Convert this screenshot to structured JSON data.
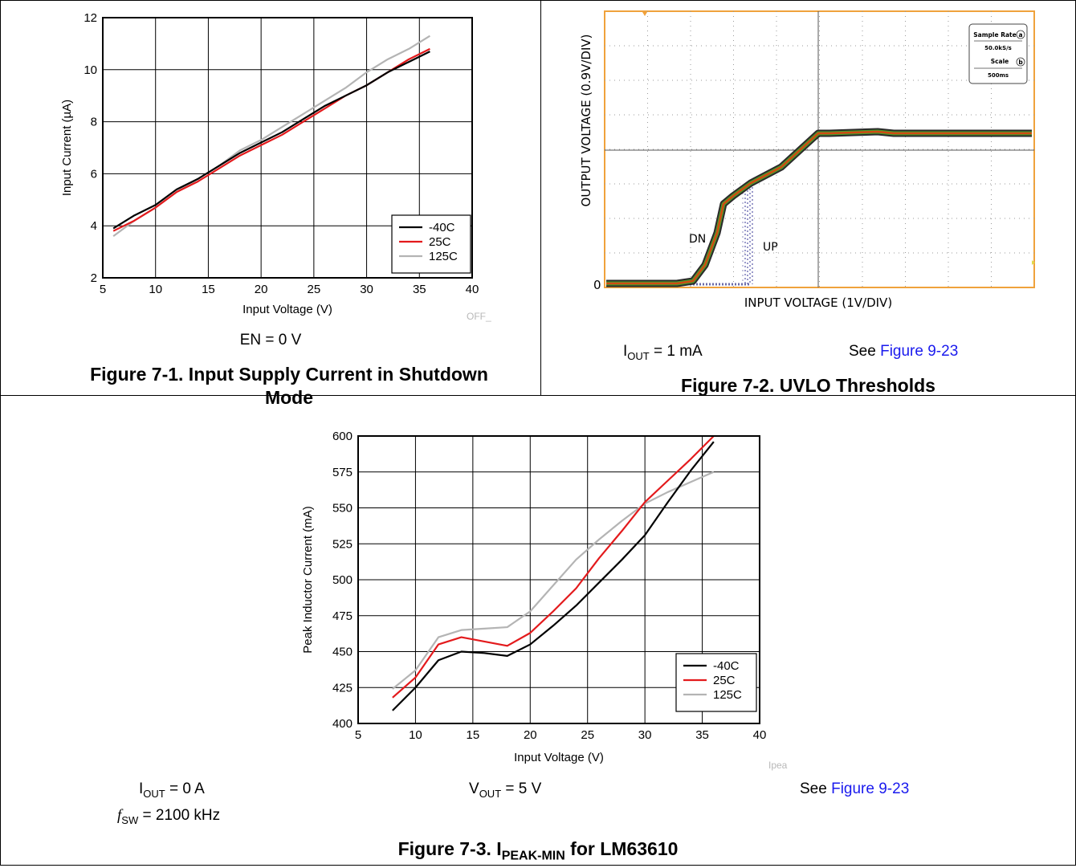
{
  "figure1": {
    "caption": "Figure 7-1. Input Supply Current in Shutdown Mode",
    "condition": "EN = 0 V",
    "watermark": "OFF_"
  },
  "figure2": {
    "caption": "Figure 7-2. UVLO Thresholds",
    "condition_prefix": "I",
    "condition_sub": "OUT",
    "condition_suffix": " = 1 mA",
    "see_prefix": "See ",
    "see_link": "Figure 9-23",
    "ylabel": "OUTPUT VOLTAGE (0.9V/DIV)",
    "xlabel": "INPUT VOLTAGE (1V/DIV)",
    "zero_label": "0",
    "dn_label": "DN",
    "up_label": "UP",
    "info_box": {
      "sample_rate_label": "Sample Rate",
      "sample_rate_value": "50.0kS/s",
      "scale_label": "Scale",
      "scale_value": "500ms",
      "badge_a": "a",
      "badge_b": "b"
    }
  },
  "figure3": {
    "caption_prefix": "Figure 7-3. I",
    "caption_sub": "PEAK-MIN",
    "caption_suffix": " for LM63610",
    "iout_prefix": "I",
    "iout_sub": "OUT",
    "iout_suffix": " = 0 A",
    "fsw_prefix": "f",
    "fsw_sub": "SW",
    "fsw_suffix": " = 2100 kHz",
    "vout_prefix": "V",
    "vout_sub": "OUT",
    "vout_suffix": " = 5 V",
    "see_prefix": "See ",
    "see_link": "Figure 9-23",
    "watermark": "Ipea"
  },
  "colors": {
    "m40": "#000000",
    "c25": "#e31a1c",
    "c125": "#b4b4b4",
    "link": "#1a1aee",
    "scope_border": "#f0a23c"
  },
  "chart_data": [
    {
      "type": "line",
      "title": "",
      "xlabel": "Input Voltage (V)",
      "ylabel": "Input Current (µA)",
      "xlim": [
        5,
        40
      ],
      "ylim": [
        2,
        12
      ],
      "xticks": [
        5,
        10,
        15,
        20,
        25,
        30,
        35,
        40
      ],
      "yticks": [
        2,
        4,
        6,
        8,
        10,
        12
      ],
      "grid": true,
      "legend_position": "bottom-right",
      "series": [
        {
          "name": "-40C",
          "color": "#000000",
          "x": [
            6,
            8,
            10,
            12,
            14,
            16,
            18,
            20,
            22,
            24,
            26,
            28,
            30,
            32,
            34,
            36
          ],
          "y": [
            3.9,
            4.4,
            4.8,
            5.4,
            5.8,
            6.3,
            6.8,
            7.2,
            7.6,
            8.1,
            8.6,
            9.0,
            9.4,
            9.9,
            10.3,
            10.7
          ]
        },
        {
          "name": "25C",
          "color": "#e31a1c",
          "x": [
            6,
            8,
            10,
            12,
            14,
            16,
            18,
            20,
            22,
            24,
            26,
            28,
            30,
            32,
            34,
            36
          ],
          "y": [
            3.8,
            4.2,
            4.7,
            5.3,
            5.7,
            6.2,
            6.7,
            7.1,
            7.5,
            8.0,
            8.5,
            9.0,
            9.4,
            9.9,
            10.4,
            10.8
          ]
        },
        {
          "name": "125C",
          "color": "#b4b4b4",
          "x": [
            6,
            8,
            10,
            12,
            14,
            16,
            18,
            20,
            22,
            24,
            26,
            28,
            30,
            32,
            34,
            36
          ],
          "y": [
            3.6,
            4.2,
            4.7,
            5.3,
            5.8,
            6.3,
            6.9,
            7.3,
            7.8,
            8.3,
            8.8,
            9.3,
            9.9,
            10.4,
            10.8,
            11.3
          ]
        }
      ]
    },
    {
      "type": "line",
      "title": "",
      "xlabel": "Input Voltage (V)",
      "ylabel": "Peak Inductor Current (mA)",
      "xlim": [
        5,
        40
      ],
      "ylim": [
        400,
        600
      ],
      "xticks": [
        5,
        10,
        15,
        20,
        25,
        30,
        35,
        40
      ],
      "yticks": [
        400,
        425,
        450,
        475,
        500,
        525,
        550,
        575,
        600
      ],
      "grid": true,
      "legend_position": "bottom-right",
      "series": [
        {
          "name": "-40C",
          "color": "#000000",
          "x": [
            8,
            10,
            12,
            14,
            16,
            18,
            20,
            22,
            24,
            26,
            28,
            30,
            32,
            34,
            36
          ],
          "y": [
            409,
            425,
            444,
            450,
            449,
            447,
            455,
            468,
            482,
            498,
            514,
            531,
            554,
            576,
            596
          ]
        },
        {
          "name": "25C",
          "color": "#e31a1c",
          "x": [
            8,
            10,
            12,
            14,
            16,
            18,
            20,
            22,
            24,
            26,
            28,
            30,
            32,
            34,
            36
          ],
          "y": [
            418,
            432,
            455,
            460,
            457,
            454,
            463,
            478,
            494,
            515,
            534,
            554,
            569,
            584,
            600
          ]
        },
        {
          "name": "125C",
          "color": "#b4b4b4",
          "x": [
            8,
            10,
            12,
            14,
            16,
            18,
            20,
            22,
            24,
            26,
            28,
            30,
            32,
            34,
            36
          ],
          "y": [
            424,
            437,
            460,
            465,
            466,
            467,
            478,
            496,
            514,
            528,
            541,
            553,
            561,
            568,
            575
          ]
        }
      ]
    }
  ]
}
